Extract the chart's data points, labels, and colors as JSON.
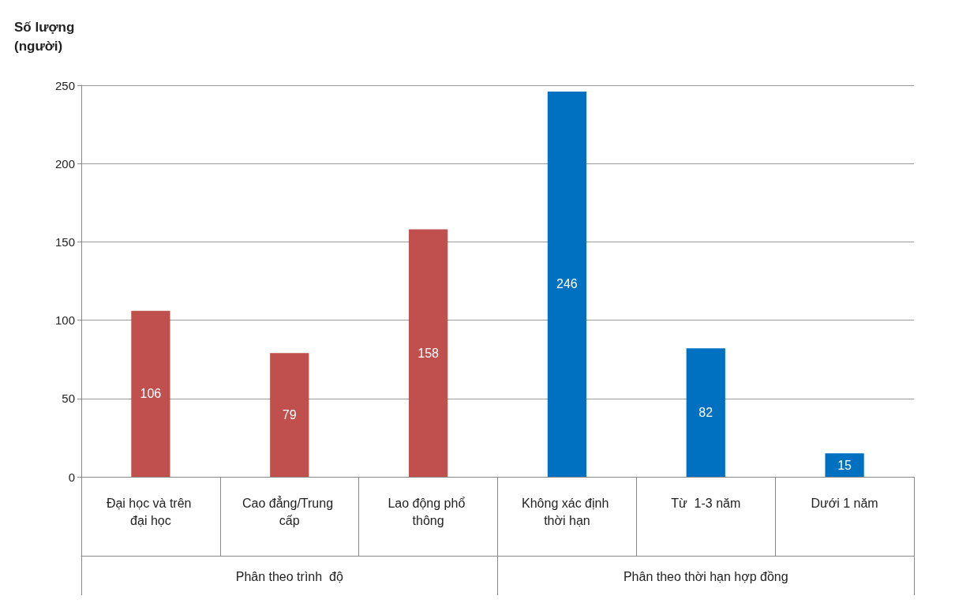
{
  "chart_data": {
    "type": "bar",
    "ylabel": "Số lượng\n(người)",
    "categories": [
      "Đại học và trên đại học",
      "Cao đẳng/Trung cấp",
      "Lao động phổ thông",
      "Không xác định thời hạn",
      "Từ  1-3 năm",
      "Dưới 1 năm"
    ],
    "values": [
      106,
      79,
      158,
      246,
      82,
      15
    ],
    "colors": [
      "#c0504d",
      "#c0504d",
      "#c0504d",
      "#0070c0",
      "#0070c0",
      "#0070c0"
    ],
    "ylim": [
      0,
      250
    ],
    "yticks": [
      0,
      50,
      100,
      150,
      200,
      250
    ],
    "grid": "y",
    "data_labels": true,
    "annotations": [
      "Phân theo trình  độ",
      "Phân theo thời hạn hợp đồng"
    ]
  }
}
